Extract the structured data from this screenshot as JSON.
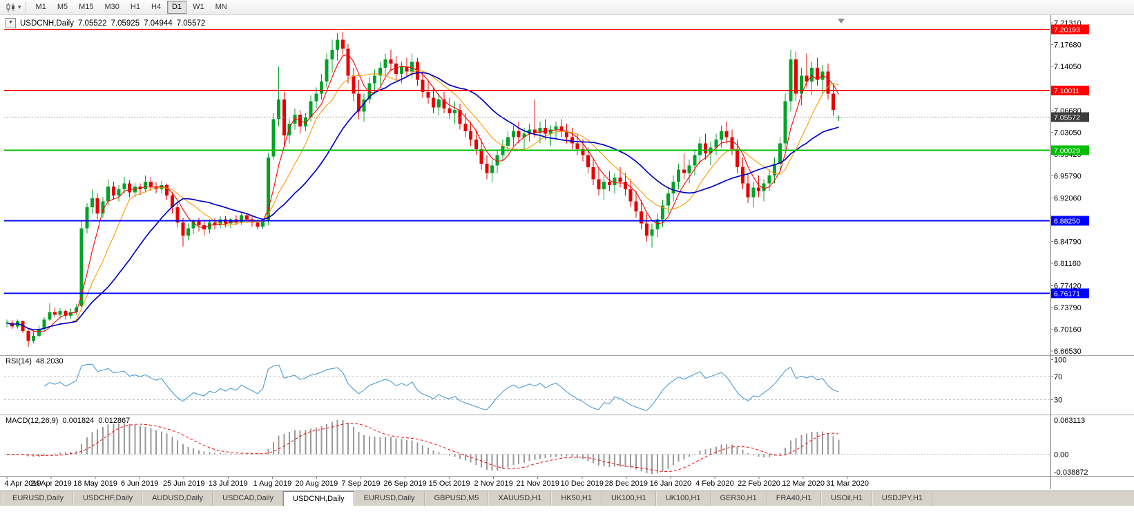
{
  "toolbar": {
    "chart_type_icon": "candlestick-chart-icon",
    "dropdown_icon": "▾",
    "timeframes": [
      {
        "label": "M1"
      },
      {
        "label": "M5"
      },
      {
        "label": "M15"
      },
      {
        "label": "M30"
      },
      {
        "label": "H1"
      },
      {
        "label": "H4"
      },
      {
        "label": "D1",
        "active": true
      },
      {
        "label": "W1"
      },
      {
        "label": "MN"
      }
    ]
  },
  "chart_data": {
    "type": "candlestick",
    "title": {
      "collapse_icon": "▼",
      "symbol": "USDCNH,Daily",
      "open": "7.05522",
      "high": "7.05925",
      "low": "7.04944",
      "close": "7.05572"
    },
    "candle_up_color": "#00A228",
    "candle_down_color": "#E80000",
    "price_axis": {
      "ticks": [
        {
          "label": "7.21310",
          "value": 7.2131
        },
        {
          "label": "7.17680",
          "value": 7.1768
        },
        {
          "label": "7.14050",
          "value": 7.1405
        },
        {
          "label": "7.06680",
          "value": 7.0668
        },
        {
          "label": "7.03050",
          "value": 7.0305
        },
        {
          "label": "6.99420",
          "value": 6.9942
        },
        {
          "label": "6.95790",
          "value": 6.9579
        },
        {
          "label": "6.92060",
          "value": 6.9206
        },
        {
          "label": "6.84790",
          "value": 6.8479
        },
        {
          "label": "6.81160",
          "value": 6.8116
        },
        {
          "label": "6.77420",
          "value": 6.7742
        },
        {
          "label": "6.73790",
          "value": 6.7379
        },
        {
          "label": "6.70160",
          "value": 6.7016
        },
        {
          "label": "6.66530",
          "value": 6.6653
        }
      ]
    },
    "hlines": [
      {
        "label": "7.20193",
        "value": 7.20193,
        "color": "#FF0000",
        "width": 1
      },
      {
        "label": "7.10011",
        "value": 7.10011,
        "color": "#FF0000",
        "width": 2
      },
      {
        "label": "7.00029",
        "value": 7.00029,
        "color": "#00BE00",
        "width": 2
      },
      {
        "label": "6.88250",
        "value": 6.8825,
        "color": "#0000FF",
        "width": 2
      },
      {
        "label": "6.76171",
        "value": 6.76171,
        "color": "#0000FF",
        "width": 2
      }
    ],
    "current_price": {
      "label": "7.05572",
      "value": 7.05572,
      "line_color": "#9c9c9c",
      "badge_color": "#3c3c3c"
    },
    "moving_averages": [
      {
        "name": "ma-fast",
        "color": "#FF0000",
        "period": 5
      },
      {
        "name": "ma-medium",
        "color": "#FF9900",
        "period": 10
      },
      {
        "name": "ma-slow",
        "color": "#0000C8",
        "period": 20
      }
    ],
    "rsi": {
      "label": "RSI(14)",
      "value": "48.2030",
      "color": "#4D9BD6",
      "axis_labels": [
        "100",
        "70",
        "30"
      ],
      "levels": [
        70,
        30
      ]
    },
    "macd": {
      "label": "MACD(12,26,9)",
      "value_main": "0.001824",
      "value_signal": "0.012867",
      "axis": {
        "top": "0.063113",
        "zero": "0.00",
        "bottom": "-0.038872"
      },
      "hist_color": "#999999",
      "signal_color": "#FF0000"
    },
    "dates": [
      "4 Apr 2019",
      "24 Apr 2019",
      "18 May 2019",
      "6 Jun 2019",
      "25 Jun 2019",
      "13 Jul 2019",
      "1 Aug 2019",
      "20 Aug 2019",
      "7 Sep 2019",
      "26 Sep 2019",
      "15 Oct 2019",
      "2 Nov 2019",
      "21 Nov 2019",
      "10 Dec 2019",
      "28 Dec 2019",
      "16 Jan 2020",
      "4 Feb 2020",
      "22 Feb 2020",
      "12 Mar 2020",
      "31 Mar 2020"
    ],
    "candles": [
      [
        6.712,
        6.718,
        6.705,
        6.7125
      ],
      [
        6.7125,
        6.7165,
        6.702,
        6.706
      ],
      [
        6.706,
        6.7175,
        6.703,
        6.715
      ],
      [
        6.715,
        6.716,
        6.695,
        6.6985
      ],
      [
        6.6985,
        6.701,
        6.672,
        6.682
      ],
      [
        6.682,
        6.698,
        6.678,
        6.6905
      ],
      [
        6.6905,
        6.708,
        6.688,
        6.702
      ],
      [
        6.702,
        6.722,
        6.699,
        6.718
      ],
      [
        6.718,
        6.745,
        6.715,
        6.73
      ],
      [
        6.73,
        6.738,
        6.721,
        6.726
      ],
      [
        6.726,
        6.737,
        6.72,
        6.732
      ],
      [
        6.732,
        6.735,
        6.718,
        6.724
      ],
      [
        6.724,
        6.736,
        6.719,
        6.73
      ],
      [
        6.73,
        6.743,
        6.726,
        6.738
      ],
      [
        6.74,
        6.882,
        6.738,
        6.87
      ],
      [
        6.87,
        6.912,
        6.862,
        6.905
      ],
      [
        6.905,
        6.935,
        6.895,
        6.92
      ],
      [
        6.92,
        6.928,
        6.885,
        6.895
      ],
      [
        6.895,
        6.922,
        6.888,
        6.915
      ],
      [
        6.915,
        6.952,
        6.908,
        6.94
      ],
      [
        6.94,
        6.948,
        6.918,
        6.925
      ],
      [
        6.925,
        6.942,
        6.915,
        6.935
      ],
      [
        6.935,
        6.956,
        6.928,
        6.945
      ],
      [
        6.945,
        6.95,
        6.922,
        6.93
      ],
      [
        6.93,
        6.946,
        6.922,
        6.94
      ],
      [
        6.94,
        6.945,
        6.926,
        6.935
      ],
      [
        6.935,
        6.958,
        6.93,
        6.948
      ],
      [
        6.948,
        6.956,
        6.933,
        6.94
      ],
      [
        6.94,
        6.947,
        6.928,
        6.935
      ],
      [
        6.935,
        6.949,
        6.929,
        6.942
      ],
      [
        6.942,
        6.945,
        6.918,
        6.925
      ],
      [
        6.925,
        6.93,
        6.895,
        6.905
      ],
      [
        6.905,
        6.912,
        6.872,
        6.88
      ],
      [
        6.88,
        6.888,
        6.84,
        6.858
      ],
      [
        6.858,
        6.878,
        6.85,
        6.87
      ],
      [
        6.87,
        6.885,
        6.86,
        6.882
      ],
      [
        6.882,
        6.888,
        6.865,
        6.875
      ],
      [
        6.875,
        6.882,
        6.858,
        6.868
      ],
      [
        6.868,
        6.885,
        6.862,
        6.88
      ],
      [
        6.88,
        6.887,
        6.868,
        6.875
      ],
      [
        6.875,
        6.89,
        6.87,
        6.885
      ],
      [
        6.885,
        6.89,
        6.872,
        6.878
      ],
      [
        6.878,
        6.888,
        6.87,
        6.885
      ],
      [
        6.885,
        6.892,
        6.875,
        6.88
      ],
      [
        6.88,
        6.895,
        6.876,
        6.892
      ],
      [
        6.892,
        6.896,
        6.88,
        6.885
      ],
      [
        6.885,
        6.89,
        6.873,
        6.88
      ],
      [
        6.88,
        6.885,
        6.868,
        6.873
      ],
      [
        6.873,
        6.884,
        6.869,
        6.882
      ],
      [
        6.882,
        6.995,
        6.875,
        6.988
      ],
      [
        6.99,
        7.062,
        6.985,
        7.052
      ],
      [
        7.052,
        7.14,
        7.04,
        7.085
      ],
      [
        7.085,
        7.098,
        7.005,
        7.025
      ],
      [
        7.025,
        7.052,
        7.012,
        7.045
      ],
      [
        7.045,
        7.07,
        7.035,
        7.06
      ],
      [
        7.06,
        7.068,
        7.028,
        7.04
      ],
      [
        7.04,
        7.062,
        7.032,
        7.055
      ],
      [
        7.055,
        7.092,
        7.048,
        7.082
      ],
      [
        7.082,
        7.105,
        7.07,
        7.095
      ],
      [
        7.095,
        7.128,
        7.085,
        7.115
      ],
      [
        7.115,
        7.162,
        7.105,
        7.152
      ],
      [
        7.152,
        7.185,
        7.13,
        7.168
      ],
      [
        7.168,
        7.196,
        7.15,
        7.185
      ],
      [
        7.185,
        7.198,
        7.16,
        7.17
      ],
      [
        7.17,
        7.178,
        7.112,
        7.125
      ],
      [
        7.125,
        7.138,
        7.082,
        7.095
      ],
      [
        7.095,
        7.118,
        7.052,
        7.065
      ],
      [
        7.065,
        7.095,
        7.048,
        7.085
      ],
      [
        7.085,
        7.122,
        7.078,
        7.112
      ],
      [
        7.112,
        7.135,
        7.095,
        7.125
      ],
      [
        7.125,
        7.148,
        7.108,
        7.138
      ],
      [
        7.138,
        7.162,
        7.125,
        7.152
      ],
      [
        7.152,
        7.168,
        7.132,
        7.145
      ],
      [
        7.145,
        7.158,
        7.118,
        7.128
      ],
      [
        7.128,
        7.148,
        7.112,
        7.14
      ],
      [
        7.14,
        7.155,
        7.122,
        7.132
      ],
      [
        7.132,
        7.162,
        7.12,
        7.148
      ],
      [
        7.148,
        7.155,
        7.108,
        7.118
      ],
      [
        7.118,
        7.132,
        7.088,
        7.098
      ],
      [
        7.098,
        7.118,
        7.078,
        7.088
      ],
      [
        7.088,
        7.105,
        7.062,
        7.072
      ],
      [
        7.072,
        7.095,
        7.058,
        7.085
      ],
      [
        7.085,
        7.098,
        7.062,
        7.07
      ],
      [
        7.07,
        7.088,
        7.052,
        7.062
      ],
      [
        7.062,
        7.082,
        7.045,
        7.068
      ],
      [
        7.068,
        7.078,
        7.035,
        7.045
      ],
      [
        7.045,
        7.062,
        7.022,
        7.032
      ],
      [
        7.032,
        7.048,
        7.008,
        7.018
      ],
      [
        7.018,
        7.035,
        6.992,
        7.002
      ],
      [
        7.002,
        7.018,
        6.968,
        6.978
      ],
      [
        6.978,
        6.992,
        6.952,
        6.962
      ],
      [
        6.962,
        6.985,
        6.948,
        6.975
      ],
      [
        6.975,
        7.002,
        6.962,
        6.992
      ],
      [
        6.992,
        7.018,
        6.982,
        7.008
      ],
      [
        7.008,
        7.032,
        6.995,
        7.022
      ],
      [
        7.022,
        7.042,
        7.008,
        7.032
      ],
      [
        7.032,
        7.048,
        7.012,
        7.022
      ],
      [
        7.022,
        7.038,
        7.002,
        7.028
      ],
      [
        7.028,
        7.045,
        7.015,
        7.035
      ],
      [
        7.035,
        7.085,
        7.022,
        7.03
      ],
      [
        7.03,
        7.048,
        7.012,
        7.038
      ],
      [
        7.038,
        7.052,
        7.018,
        7.028
      ],
      [
        7.028,
        7.042,
        7.008,
        7.035
      ],
      [
        7.035,
        7.048,
        7.02,
        7.04
      ],
      [
        7.04,
        7.052,
        7.022,
        7.032
      ],
      [
        7.032,
        7.045,
        7.012,
        7.022
      ],
      [
        7.022,
        7.038,
        7.002,
        7.012
      ],
      [
        7.012,
        7.028,
        6.992,
        7.002
      ],
      [
        7.002,
        7.018,
        6.982,
        6.992
      ],
      [
        6.992,
        7.005,
        6.962,
        6.972
      ],
      [
        6.972,
        6.988,
        6.942,
        6.952
      ],
      [
        6.952,
        6.972,
        6.925,
        6.935
      ],
      [
        6.935,
        6.958,
        6.918,
        6.948
      ],
      [
        6.948,
        6.965,
        6.932,
        6.942
      ],
      [
        6.942,
        6.962,
        6.928,
        6.955
      ],
      [
        6.955,
        6.972,
        6.938,
        6.948
      ],
      [
        6.948,
        6.962,
        6.925,
        6.935
      ],
      [
        6.935,
        6.952,
        6.905,
        6.915
      ],
      [
        6.915,
        6.932,
        6.888,
        6.898
      ],
      [
        6.898,
        6.918,
        6.868,
        6.878
      ],
      [
        6.878,
        6.895,
        6.848,
        6.858
      ],
      [
        6.858,
        6.878,
        6.838,
        6.868
      ],
      [
        6.868,
        6.895,
        6.855,
        6.885
      ],
      [
        6.885,
        6.918,
        6.872,
        6.908
      ],
      [
        6.908,
        6.938,
        6.895,
        6.928
      ],
      [
        6.928,
        6.958,
        6.915,
        6.948
      ],
      [
        6.948,
        6.978,
        6.935,
        6.968
      ],
      [
        6.968,
        6.995,
        6.952,
        6.962
      ],
      [
        6.962,
        6.985,
        6.945,
        6.975
      ],
      [
        6.975,
        7.002,
        6.958,
        6.992
      ],
      [
        6.992,
        7.022,
        6.978,
        7.012
      ],
      [
        7.012,
        7.028,
        6.985,
        6.995
      ],
      [
        6.995,
        7.015,
        6.975,
        7.005
      ],
      [
        7.005,
        7.028,
        6.992,
        7.018
      ],
      [
        7.018,
        7.042,
        7.005,
        7.032
      ],
      [
        7.032,
        7.048,
        7.012,
        7.022
      ],
      [
        7.022,
        7.035,
        6.992,
        7.002
      ],
      [
        7.002,
        7.018,
        6.962,
        6.972
      ],
      [
        6.972,
        6.988,
        6.935,
        6.945
      ],
      [
        6.945,
        6.962,
        6.912,
        6.922
      ],
      [
        6.922,
        6.948,
        6.905,
        6.938
      ],
      [
        6.938,
        6.958,
        6.922,
        6.932
      ],
      [
        6.932,
        6.952,
        6.915,
        6.945
      ],
      [
        6.945,
        6.968,
        6.932,
        6.958
      ],
      [
        6.958,
        6.988,
        6.945,
        6.978
      ],
      [
        6.978,
        7.022,
        6.965,
        7.012
      ],
      [
        7.012,
        7.095,
        7.002,
        7.082
      ],
      [
        7.082,
        7.168,
        7.065,
        7.152
      ],
      [
        7.152,
        7.165,
        7.082,
        7.095
      ],
      [
        7.095,
        7.138,
        7.075,
        7.125
      ],
      [
        7.125,
        7.162,
        7.105,
        7.115
      ],
      [
        7.115,
        7.148,
        7.092,
        7.138
      ],
      [
        7.138,
        7.155,
        7.108,
        7.118
      ],
      [
        7.118,
        7.142,
        7.095,
        7.132
      ],
      [
        7.132,
        7.145,
        7.085,
        7.095
      ],
      [
        7.095,
        7.112,
        7.058,
        7.068
      ],
      [
        7.0552,
        7.0593,
        7.0494,
        7.0557
      ]
    ]
  },
  "tabs": [
    {
      "label": "EURUSD,Daily"
    },
    {
      "label": "USDCHF,Daily"
    },
    {
      "label": "AUDUSD,Daily"
    },
    {
      "label": "USDCAD,Daily"
    },
    {
      "label": "USDCNH,Daily",
      "active": true
    },
    {
      "label": "EURUSD,Daily"
    },
    {
      "label": "GBPUSD,M5"
    },
    {
      "label": "XAUUSD,H1"
    },
    {
      "label": "HK50,H1"
    },
    {
      "label": "UK100,H1"
    },
    {
      "label": "UK100,H1"
    },
    {
      "label": "GER30,H1"
    },
    {
      "label": "FRA40,H1"
    },
    {
      "label": "USOil,H1"
    },
    {
      "label": "USDJPY,H1"
    }
  ]
}
